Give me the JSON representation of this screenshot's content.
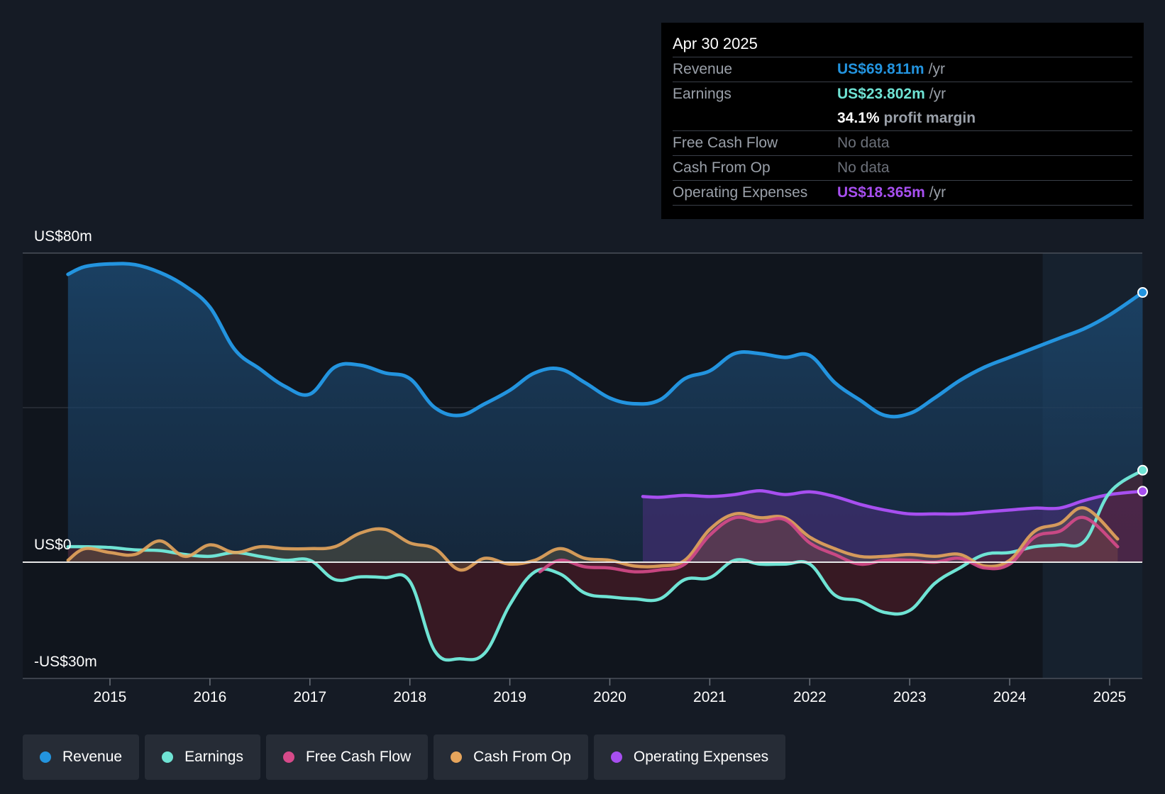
{
  "colors": {
    "background": "#151b25",
    "revenue": "#2394df",
    "earnings": "#6fe3d4",
    "free_cash_flow": "#d64a8a",
    "cash_from_op": "#e6a55c",
    "operating_expenses": "#a74ff0"
  },
  "tooltip": {
    "date": "Apr 30 2025",
    "rows": {
      "revenue": {
        "label": "Revenue",
        "value": "US$69.811m",
        "unit": "/yr"
      },
      "earnings": {
        "label": "Earnings",
        "value": "US$23.802m",
        "unit": "/yr"
      },
      "margin": {
        "value": "34.1%",
        "text": "profit margin"
      },
      "free_cash_flow": {
        "label": "Free Cash Flow",
        "value": "No data"
      },
      "cash_from_op": {
        "label": "Cash From Op",
        "value": "No data"
      },
      "operating_expenses": {
        "label": "Operating Expenses",
        "value": "US$18.365m",
        "unit": "/yr"
      }
    }
  },
  "legend": [
    {
      "key": "revenue",
      "label": "Revenue",
      "color": "#2394df"
    },
    {
      "key": "earnings",
      "label": "Earnings",
      "color": "#6fe3d4"
    },
    {
      "key": "free_cash_flow",
      "label": "Free Cash Flow",
      "color": "#d64a8a"
    },
    {
      "key": "cash_from_op",
      "label": "Cash From Op",
      "color": "#e6a55c"
    },
    {
      "key": "operating_expenses",
      "label": "Operating Expenses",
      "color": "#a74ff0"
    }
  ],
  "chart_data": {
    "type": "line",
    "title": "",
    "xlabel": "",
    "ylabel": "",
    "ylim": [
      -30,
      80
    ],
    "xlim": [
      2014.0,
      2025.33
    ],
    "y_axis_labels": {
      "top": "US$80m",
      "zero": "US$0",
      "bottom": "-US$30m"
    },
    "x_ticks": [
      {
        "label": "2015",
        "value": 2015
      },
      {
        "label": "2016",
        "value": 2016
      },
      {
        "label": "2017",
        "value": 2017
      },
      {
        "label": "2018",
        "value": 2018
      },
      {
        "label": "2019",
        "value": 2019
      },
      {
        "label": "2020",
        "value": 2020
      },
      {
        "label": "2021",
        "value": 2021
      },
      {
        "label": "2022",
        "value": 2022
      },
      {
        "label": "2023",
        "value": 2023
      },
      {
        "label": "2024",
        "value": 2024
      },
      {
        "label": "2025",
        "value": 2025
      }
    ],
    "highlight_start": 2024.33,
    "series": [
      {
        "name": "Revenue",
        "key": "revenue",
        "area": true,
        "x": [
          2014.58,
          2014.75,
          2015.0,
          2015.25,
          2015.5,
          2015.75,
          2016.0,
          2016.25,
          2016.5,
          2016.75,
          2017.0,
          2017.25,
          2017.5,
          2017.75,
          2018.0,
          2018.25,
          2018.5,
          2018.75,
          2019.0,
          2019.25,
          2019.5,
          2019.75,
          2020.0,
          2020.25,
          2020.5,
          2020.75,
          2021.0,
          2021.25,
          2021.5,
          2021.75,
          2022.0,
          2022.25,
          2022.5,
          2022.75,
          2023.0,
          2023.25,
          2023.5,
          2023.75,
          2024.0,
          2024.25,
          2024.5,
          2024.75,
          2025.0,
          2025.33
        ],
        "y": [
          74.5,
          76.5,
          77.2,
          77.0,
          75.0,
          71.5,
          66.0,
          55.0,
          50.0,
          45.5,
          43.5,
          50.5,
          51.0,
          49.0,
          47.5,
          40.0,
          38.0,
          41.0,
          44.5,
          49.0,
          50.0,
          46.5,
          42.5,
          41.0,
          42.0,
          47.5,
          49.5,
          54.0,
          54.0,
          53.0,
          53.5,
          46.5,
          42.0,
          38.0,
          38.5,
          42.5,
          47.0,
          50.5,
          53.0,
          55.5,
          58.0,
          60.5,
          64.0,
          69.811
        ]
      },
      {
        "name": "Earnings",
        "key": "earnings",
        "area": true,
        "x": [
          2014.58,
          2014.75,
          2015.0,
          2015.25,
          2015.5,
          2015.75,
          2016.0,
          2016.25,
          2016.5,
          2016.75,
          2017.0,
          2017.25,
          2017.5,
          2017.75,
          2018.0,
          2018.25,
          2018.5,
          2018.75,
          2019.0,
          2019.25,
          2019.5,
          2019.75,
          2020.0,
          2020.25,
          2020.5,
          2020.75,
          2021.0,
          2021.25,
          2021.5,
          2021.75,
          2022.0,
          2022.25,
          2022.5,
          2022.75,
          2023.0,
          2023.25,
          2023.5,
          2023.75,
          2024.0,
          2024.25,
          2024.5,
          2024.75,
          2025.0,
          2025.33
        ],
        "y": [
          4.0,
          4.0,
          3.8,
          3.2,
          3.0,
          2.0,
          1.5,
          2.5,
          1.5,
          0.5,
          0.5,
          -4.5,
          -3.8,
          -4.0,
          -5.0,
          -23.0,
          -25.0,
          -23.5,
          -11.0,
          -2.5,
          -3.0,
          -8.0,
          -9.0,
          -9.5,
          -9.5,
          -4.5,
          -4.0,
          0.5,
          -0.5,
          -0.5,
          -0.5,
          -8.5,
          -10.0,
          -13.0,
          -12.5,
          -5.5,
          -1.5,
          2.0,
          2.5,
          4.0,
          4.5,
          5.5,
          18.0,
          23.802
        ]
      },
      {
        "name": "Free Cash Flow",
        "key": "free_cash_flow",
        "area": true,
        "x": [
          2019.3,
          2019.5,
          2019.75,
          2020.0,
          2020.25,
          2020.5,
          2020.75,
          2021.0,
          2021.25,
          2021.5,
          2021.75,
          2022.0,
          2022.25,
          2022.5,
          2022.75,
          2023.0,
          2023.25,
          2023.5,
          2023.75,
          2024.0,
          2024.25,
          2024.5,
          2024.75,
          2025.08
        ],
        "y": [
          -2.5,
          0.5,
          -1.2,
          -1.5,
          -2.5,
          -2.0,
          -0.5,
          7.0,
          11.5,
          10.5,
          11.0,
          5.0,
          2.0,
          -0.5,
          0.5,
          0.5,
          0.0,
          1.0,
          -1.5,
          -0.5,
          6.5,
          8.0,
          11.5,
          4.0
        ]
      },
      {
        "name": "Cash From Op",
        "key": "cash_from_op",
        "area": true,
        "x": [
          2014.58,
          2014.75,
          2015.0,
          2015.25,
          2015.5,
          2015.75,
          2016.0,
          2016.25,
          2016.5,
          2016.75,
          2017.0,
          2017.25,
          2017.5,
          2017.75,
          2018.0,
          2018.25,
          2018.5,
          2018.75,
          2019.0,
          2019.25,
          2019.5,
          2019.75,
          2020.0,
          2020.25,
          2020.5,
          2020.75,
          2021.0,
          2021.25,
          2021.5,
          2021.75,
          2022.0,
          2022.25,
          2022.5,
          2022.75,
          2023.0,
          2023.25,
          2023.5,
          2023.75,
          2024.0,
          2024.25,
          2024.5,
          2024.75,
          2025.08
        ],
        "y": [
          0.5,
          3.5,
          2.5,
          2.0,
          5.5,
          1.5,
          4.5,
          2.5,
          4.0,
          3.5,
          3.5,
          4.0,
          7.5,
          8.5,
          5.0,
          3.5,
          -2.0,
          1.0,
          -0.5,
          0.5,
          3.5,
          1.0,
          0.5,
          -1.0,
          -1.0,
          0.5,
          8.5,
          12.5,
          11.5,
          11.5,
          6.5,
          3.5,
          1.5,
          1.5,
          2.0,
          1.5,
          2.0,
          -1.0,
          0.5,
          8.0,
          10.0,
          14.0,
          6.0
        ]
      },
      {
        "name": "Operating Expenses",
        "key": "operating_expenses",
        "area": true,
        "x": [
          2020.33,
          2020.5,
          2020.75,
          2021.0,
          2021.25,
          2021.5,
          2021.75,
          2022.0,
          2022.25,
          2022.5,
          2022.75,
          2023.0,
          2023.25,
          2023.5,
          2023.75,
          2024.0,
          2024.25,
          2024.5,
          2024.75,
          2025.0,
          2025.33
        ],
        "y": [
          17.0,
          16.8,
          17.3,
          17.0,
          17.5,
          18.5,
          17.5,
          18.2,
          17.0,
          15.0,
          13.5,
          12.5,
          12.5,
          12.5,
          13.0,
          13.5,
          14.0,
          14.0,
          16.0,
          17.5,
          18.365
        ]
      }
    ]
  }
}
